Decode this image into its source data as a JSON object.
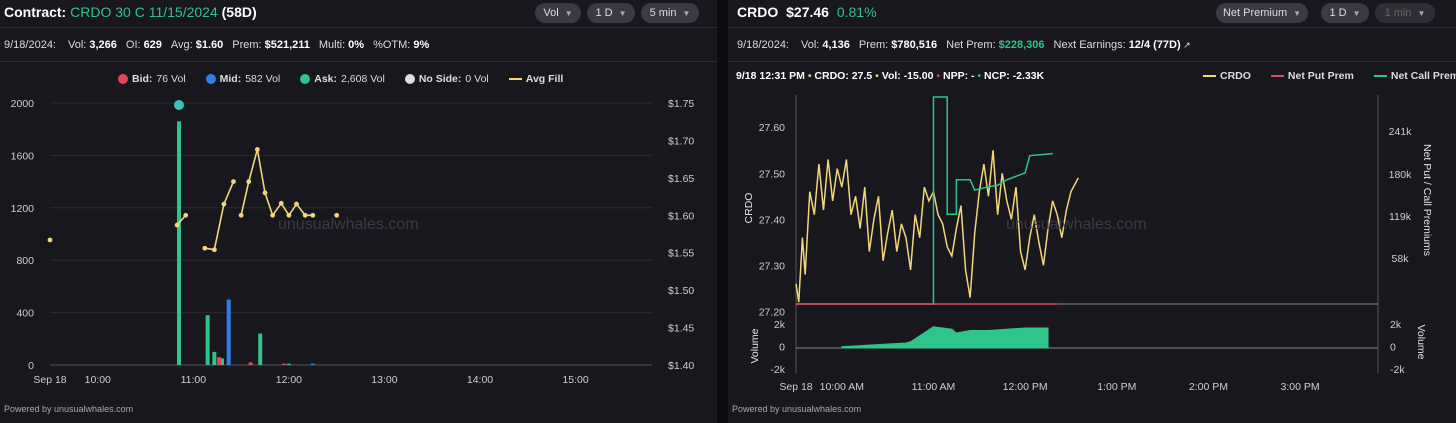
{
  "left": {
    "header": {
      "contract_label": "Contract:",
      "contract_name": "CRDO 30 C 11/15/2024",
      "days": "(58D)",
      "dropdowns": [
        "Vol",
        "1 D",
        "5 min"
      ]
    },
    "stats": [
      {
        "label": "9/18/2024:",
        "value": ""
      },
      {
        "label": "Vol:",
        "value": "3,266"
      },
      {
        "label": "OI:",
        "value": "629"
      },
      {
        "label": "Avg:",
        "value": "$1.60"
      },
      {
        "label": "Prem:",
        "value": "$521,211"
      },
      {
        "label": "Multi:",
        "value": "0%"
      },
      {
        "label": "%OTM:",
        "value": "9%"
      }
    ],
    "legend": [
      {
        "name": "Bid:",
        "value": "76 Vol",
        "color": "#e0475b",
        "kind": "dot"
      },
      {
        "name": "Mid:",
        "value": "582 Vol",
        "color": "#2f7fe8",
        "kind": "dot"
      },
      {
        "name": "Ask:",
        "value": "2,608 Vol",
        "color": "#2ec48a",
        "kind": "dot"
      },
      {
        "name": "No Side:",
        "value": "0 Vol",
        "color": "#dddddd",
        "kind": "dot"
      },
      {
        "name": "Avg Fill",
        "value": "",
        "color": "#f2d57c",
        "kind": "line"
      }
    ],
    "watermark": "unusualwhales.com",
    "powered": "Powered by unusualwhales.com"
  },
  "right": {
    "header": {
      "ticker": "CRDO",
      "price": "$27.46",
      "change": "0.81%",
      "dropdowns": [
        "Net Premium",
        "1 D",
        "1 min"
      ]
    },
    "stats": [
      {
        "label": "9/18/2024:",
        "value": ""
      },
      {
        "label": "Vol:",
        "value": "4,136"
      },
      {
        "label": "Prem:",
        "value": "$780,516"
      },
      {
        "label": "Net Prem:",
        "value": "$228,306"
      },
      {
        "label": "Next Earnings:",
        "value": "12/4 (77D)"
      }
    ],
    "hover": {
      "time": "9/18 12:31 PM",
      "crdo": "CRDO: 27.5",
      "vol": "Vol: -15.00",
      "npp": "NPP: -",
      "ncp": "NCP: -2.33K"
    },
    "legend": [
      {
        "name": "CRDO",
        "color": "#f2d57c"
      },
      {
        "name": "Net Put Prem",
        "color": "#e0475b"
      },
      {
        "name": "Net Call Prem",
        "color": "#2ec48a"
      }
    ],
    "watermark": "unusualwhales.com",
    "powered": "Powered by unusualwhales.com"
  },
  "chart_data": [
    {
      "type": "bar",
      "title": "",
      "x_ticks": [
        "Sep 18",
        "10:00",
        "11:00",
        "12:00",
        "13:00",
        "14:00",
        "15:00"
      ],
      "ylim": [
        0,
        2000
      ],
      "y_ticks": [
        "0",
        "400",
        "800",
        "1200",
        "1600",
        "2000"
      ],
      "y2lim": [
        1.4,
        1.75
      ],
      "y2_ticks": [
        "$1.40",
        "$1.45",
        "$1.50",
        "$1.55",
        "$1.60",
        "$1.65",
        "$1.70",
        "$1.75"
      ],
      "series": [
        {
          "name": "Ask",
          "color": "#2ec48a",
          "points": [
            [
              10.85,
              1860
            ],
            [
              11.15,
              380
            ],
            [
              11.22,
              100
            ],
            [
              11.3,
              50
            ],
            [
              11.7,
              240
            ],
            [
              12.0,
              10
            ]
          ]
        },
        {
          "name": "Mid",
          "color": "#2f7fe8",
          "points": [
            [
              11.37,
              500
            ],
            [
              12.25,
              10
            ]
          ]
        },
        {
          "name": "Bid",
          "color": "#e0475b",
          "points": [
            [
              11.27,
              60
            ],
            [
              11.6,
              20
            ],
            [
              11.95,
              10
            ]
          ]
        },
        {
          "name": "Avg Fill",
          "color": "#f2d57c",
          "kind": "line",
          "segments": [
            [
              [
                9.5,
                1.567
              ]
            ],
            [
              [
                10.83,
                1.587
              ],
              [
                10.92,
                1.6
              ]
            ],
            [
              [
                11.12,
                1.556
              ],
              [
                11.22,
                1.554
              ],
              [
                11.32,
                1.615
              ],
              [
                11.42,
                1.645
              ]
            ],
            [
              [
                11.5,
                1.6
              ],
              [
                11.58,
                1.645
              ],
              [
                11.67,
                1.688
              ],
              [
                11.75,
                1.63
              ],
              [
                11.83,
                1.6
              ],
              [
                11.92,
                1.616
              ],
              [
                12.0,
                1.6
              ],
              [
                12.08,
                1.615
              ],
              [
                12.17,
                1.6
              ],
              [
                12.25,
                1.6
              ]
            ],
            [
              [
                12.5,
                1.6
              ]
            ]
          ]
        }
      ]
    },
    {
      "type": "line",
      "title": "",
      "x_ticks": [
        "Sep 18",
        "10:00 AM",
        "11:00 AM",
        "12:00 PM",
        "1:00 PM",
        "2:00 PM",
        "3:00 PM"
      ],
      "ylabel": "CRDO",
      "ylim": [
        27.2,
        27.6
      ],
      "y_ticks": [
        "27.20",
        "27.30",
        "27.40",
        "27.50",
        "27.60"
      ],
      "y2label": "Net Put / Call Premiums",
      "y2_ticks": [
        "58k",
        "119k",
        "180k",
        "241k"
      ],
      "series": [
        {
          "name": "CRDO",
          "color": "#f2d57c",
          "points": [
            [
              9.5,
              27.26
            ],
            [
              9.53,
              27.22
            ],
            [
              9.57,
              27.36
            ],
            [
              9.6,
              27.28
            ],
            [
              9.65,
              27.46
            ],
            [
              9.7,
              27.41
            ],
            [
              9.75,
              27.52
            ],
            [
              9.8,
              27.42
            ],
            [
              9.85,
              27.53
            ],
            [
              9.9,
              27.44
            ],
            [
              9.95,
              27.51
            ],
            [
              10.0,
              27.47
            ],
            [
              10.05,
              27.53
            ],
            [
              10.1,
              27.41
            ],
            [
              10.15,
              27.45
            ],
            [
              10.2,
              27.38
            ],
            [
              10.25,
              27.47
            ],
            [
              10.3,
              27.33
            ],
            [
              10.35,
              27.4
            ],
            [
              10.4,
              27.45
            ],
            [
              10.45,
              27.31
            ],
            [
              10.5,
              27.37
            ],
            [
              10.55,
              27.42
            ],
            [
              10.6,
              27.33
            ],
            [
              10.65,
              27.39
            ],
            [
              10.7,
              27.36
            ],
            [
              10.75,
              27.29
            ],
            [
              10.8,
              27.41
            ],
            [
              10.85,
              27.36
            ],
            [
              10.9,
              27.47
            ],
            [
              10.95,
              27.44
            ],
            [
              11.0,
              27.46
            ],
            [
              11.05,
              27.41
            ],
            [
              11.1,
              27.39
            ],
            [
              11.15,
              27.34
            ],
            [
              11.2,
              27.32
            ],
            [
              11.25,
              27.38
            ],
            [
              11.3,
              27.43
            ],
            [
              11.35,
              27.29
            ],
            [
              11.4,
              27.23
            ],
            [
              11.45,
              27.37
            ],
            [
              11.5,
              27.46
            ],
            [
              11.55,
              27.52
            ],
            [
              11.6,
              27.45
            ],
            [
              11.65,
              27.55
            ],
            [
              11.7,
              27.41
            ],
            [
              11.75,
              27.5
            ],
            [
              11.8,
              27.44
            ],
            [
              11.85,
              27.4
            ],
            [
              11.9,
              27.47
            ],
            [
              11.95,
              27.33
            ],
            [
              12.0,
              27.29
            ],
            [
              12.05,
              27.36
            ],
            [
              12.1,
              27.41
            ],
            [
              12.15,
              27.35
            ],
            [
              12.2,
              27.3
            ],
            [
              12.25,
              27.38
            ],
            [
              12.3,
              27.44
            ],
            [
              12.35,
              27.41
            ],
            [
              12.4,
              27.36
            ],
            [
              12.45,
              27.42
            ],
            [
              12.5,
              27.46
            ],
            [
              12.58,
              27.49
            ]
          ]
        },
        {
          "name": "Net Call Prem",
          "color": "#2ec48a",
          "points": [
            [
              9.5,
              0
            ],
            [
              10.7,
              0
            ],
            [
              11.0,
              0
            ],
            [
              11.0,
              300
            ],
            [
              11.15,
              300
            ],
            [
              11.15,
              130
            ],
            [
              11.25,
              130
            ],
            [
              11.25,
              180
            ],
            [
              11.4,
              180
            ],
            [
              11.45,
              165
            ],
            [
              11.6,
              170
            ],
            [
              11.7,
              172
            ],
            [
              11.8,
              180
            ],
            [
              12.0,
              190
            ],
            [
              12.05,
              215
            ],
            [
              12.3,
              218
            ]
          ]
        },
        {
          "name": "Net Put Prem",
          "color": "#e0475b",
          "points": [
            [
              9.5,
              0
            ],
            [
              12.35,
              0
            ]
          ]
        }
      ],
      "volume": {
        "ylabel": "Volume",
        "ylim": [
          -2,
          2
        ],
        "y_ticks": [
          "2k",
          "0",
          "-2k"
        ],
        "bars": [
          [
            10.0,
            0.1
          ],
          [
            10.7,
            0.4
          ],
          [
            10.75,
            0.5
          ],
          [
            11.0,
            1.7
          ],
          [
            11.2,
            1.5
          ],
          [
            11.25,
            1.2
          ],
          [
            11.4,
            1.4
          ],
          [
            11.6,
            1.4
          ],
          [
            12.0,
            1.6
          ],
          [
            12.25,
            1.6
          ]
        ]
      }
    }
  ]
}
